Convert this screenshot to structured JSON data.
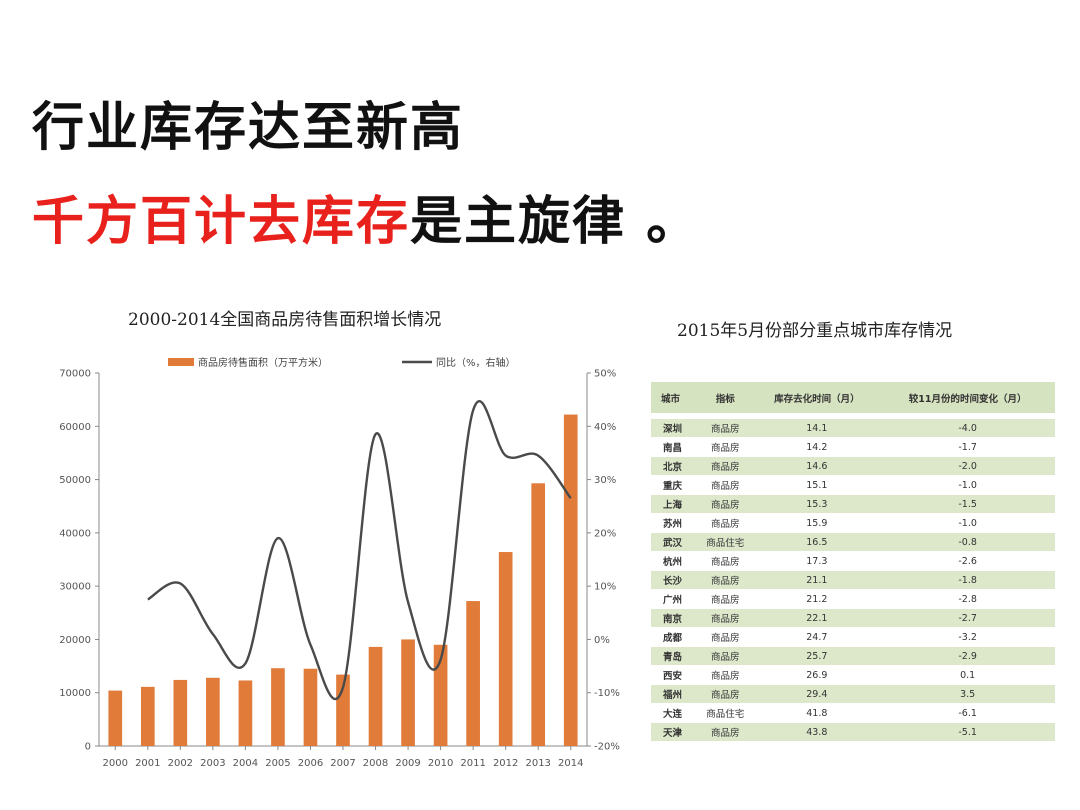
{
  "headline": {
    "line1": "行业库存达至新高",
    "line2_red": "千方百计去库存",
    "line2_black": "是主旋律 。"
  },
  "colors": {
    "red": "#e8211c",
    "bar": "#e07b3a",
    "line": "#555555",
    "table_band": "#dde8cb"
  },
  "chart_data": {
    "type": "bar",
    "title": "2000-2014全国商品房待售面积增长情况",
    "legend": {
      "bar_label": "商品房待售面积（万平方米）",
      "line_label": "同比（%，右轴）"
    },
    "categories": [
      "2000",
      "2001",
      "2002",
      "2003",
      "2004",
      "2005",
      "2006",
      "2007",
      "2008",
      "2009",
      "2010",
      "2011",
      "2012",
      "2013",
      "2014"
    ],
    "series": [
      {
        "name": "商品房待售面积（万平方米）",
        "type": "bar",
        "values": [
          10400,
          11100,
          12400,
          12800,
          12300,
          14600,
          14500,
          13400,
          18600,
          20000,
          19000,
          27200,
          36400,
          49300,
          62200
        ]
      },
      {
        "name": "同比（%，右轴）",
        "type": "line",
        "axis": "right",
        "x": [
          "2001",
          "2002",
          "2003",
          "2004",
          "2005",
          "2006",
          "2007",
          "2008",
          "2009",
          "2010",
          "2011",
          "2012",
          "2013",
          "2014"
        ],
        "values": [
          7.5,
          10.5,
          1.0,
          -4.5,
          19.0,
          -1.0,
          -9.0,
          38.5,
          7.0,
          -3.8,
          43.0,
          34.5,
          34.5,
          26.5
        ]
      }
    ],
    "left_axis": {
      "ylim": [
        0,
        70000
      ],
      "ticks": [
        "0",
        "10000",
        "20000",
        "30000",
        "40000",
        "50000",
        "60000",
        "70000"
      ]
    },
    "right_axis": {
      "ylim": [
        -20,
        50
      ],
      "ticks": [
        "-20%",
        "-10%",
        "0%",
        "10%",
        "20%",
        "30%",
        "40%",
        "50%"
      ]
    },
    "grid": false
  },
  "table": {
    "title": "2015年5月份部分重点城市库存情况",
    "headers": [
      "城市",
      "指标",
      "库存去化时间（月）",
      "较11月份的时间变化（月）"
    ],
    "rows": [
      [
        "深圳",
        "商品房",
        "14.1",
        "-4.0"
      ],
      [
        "南昌",
        "商品房",
        "14.2",
        "-1.7"
      ],
      [
        "北京",
        "商品房",
        "14.6",
        "-2.0"
      ],
      [
        "重庆",
        "商品房",
        "15.1",
        "-1.0"
      ],
      [
        "上海",
        "商品房",
        "15.3",
        "-1.5"
      ],
      [
        "苏州",
        "商品房",
        "15.9",
        "-1.0"
      ],
      [
        "武汉",
        "商品住宅",
        "16.5",
        "-0.8"
      ],
      [
        "杭州",
        "商品房",
        "17.3",
        "-2.6"
      ],
      [
        "长沙",
        "商品房",
        "21.1",
        "-1.8"
      ],
      [
        "广州",
        "商品房",
        "21.2",
        "-2.8"
      ],
      [
        "南京",
        "商品房",
        "22.1",
        "-2.7"
      ],
      [
        "成都",
        "商品房",
        "24.7",
        "-3.2"
      ],
      [
        "青岛",
        "商品房",
        "25.7",
        "-2.9"
      ],
      [
        "西安",
        "商品房",
        "26.9",
        "0.1"
      ],
      [
        "福州",
        "商品房",
        "29.4",
        "3.5"
      ],
      [
        "大连",
        "商品住宅",
        "41.8",
        "-6.1"
      ],
      [
        "天津",
        "商品房",
        "43.8",
        "-5.1"
      ]
    ]
  }
}
